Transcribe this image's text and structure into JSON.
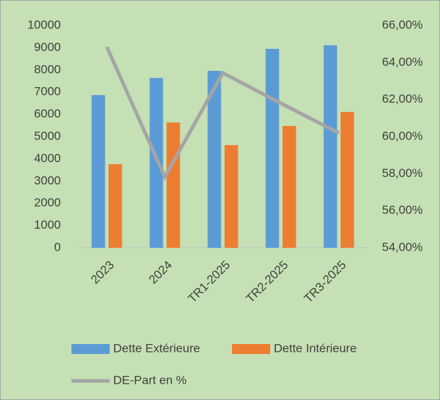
{
  "chart_data": {
    "type": "bar",
    "categories": [
      "2023",
      "2024",
      "TR1-2025",
      "TR2-2025",
      "TR3-2025"
    ],
    "series": [
      {
        "name": "Dette Extérieure",
        "type": "bar",
        "color": "#5b9bd5",
        "values": [
          6870,
          7640,
          7960,
          8950,
          9110
        ]
      },
      {
        "name": "Dette Intérieure",
        "type": "bar",
        "color": "#ed7d31",
        "values": [
          3760,
          5640,
          4620,
          5480,
          6110
        ]
      },
      {
        "name": "DE-Part en %",
        "type": "line",
        "axis": "y2",
        "color": "#a5a5a5",
        "values": [
          64.85,
          57.82,
          63.44,
          61.8,
          60.19
        ]
      }
    ],
    "ylim": [
      0,
      10000
    ],
    "yticks": [
      0,
      1000,
      2000,
      3000,
      4000,
      5000,
      6000,
      7000,
      8000,
      9000,
      10000
    ],
    "y2lim": [
      54,
      66
    ],
    "y2ticks": [
      {
        "value": 54,
        "label": "54,00%"
      },
      {
        "value": 56,
        "label": "56,00%"
      },
      {
        "value": 58,
        "label": "58,00%"
      },
      {
        "value": 60,
        "label": "60,00%"
      },
      {
        "value": 62,
        "label": "62,00%"
      },
      {
        "value": 64,
        "label": "64,00%"
      },
      {
        "value": 66,
        "label": "66,00%"
      }
    ],
    "grid": false,
    "legend": "bottom"
  }
}
